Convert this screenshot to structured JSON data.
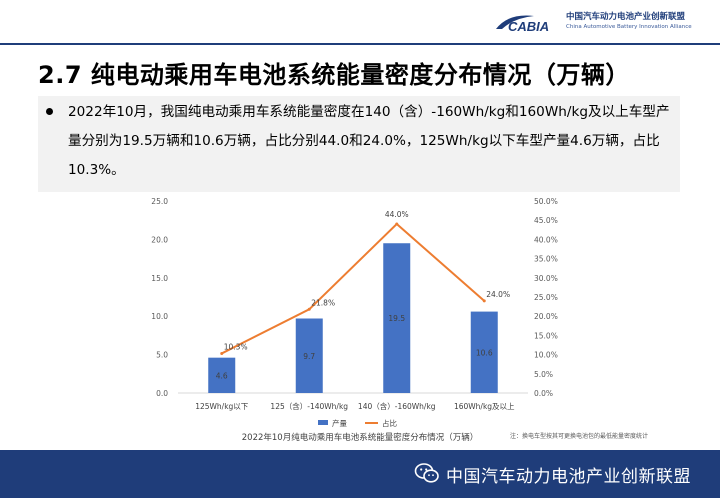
{
  "header": {
    "logo_text": "CABIA",
    "org_cn": "中国汽车动力电池产业创新联盟",
    "org_en": "China Automotive Battery Innovation Alliance"
  },
  "page_title": "2.7 纯电动乘用车电池系统能量密度分布情况（万辆）",
  "summary": "2022年10月，我国纯电动乘用车系统能量密度在140（含）-160Wh/kg和160Wh/kg及以上车型产量分别为19.5万辆和10.6万辆，占比分别44.0和24.0%，125Wh/kg以下车型产量4.6万辆，占比10.3%。",
  "chart_data": {
    "type": "bar",
    "title": "2022年10月纯电动乘用车电池系统能量密度分布情况（万辆）",
    "categories": [
      "125Wh/kg以下",
      "125（含）-140Wh/kg",
      "140（含）-160Wh/kg",
      "160Wh/kg及以上"
    ],
    "series": [
      {
        "name": "产量",
        "type": "bar",
        "axis": "left",
        "color": "#4472c4",
        "values": [
          4.6,
          9.7,
          19.5,
          10.6
        ],
        "labels": [
          "4.6",
          "9.7",
          "19.5",
          "10.6"
        ]
      },
      {
        "name": "占比",
        "type": "line",
        "axis": "right",
        "color": "#ed7d31",
        "values": [
          10.3,
          21.8,
          44.0,
          24.0
        ],
        "labels": [
          "10.3%",
          "21.8%",
          "44.0%",
          "24.0%"
        ]
      }
    ],
    "ylim_left": [
      0,
      25
    ],
    "yticks_left": [
      "0.0",
      "5.0",
      "10.0",
      "15.0",
      "20.0",
      "25.0"
    ],
    "ylim_right": [
      0,
      50
    ],
    "yticks_right": [
      "0.0%",
      "5.0%",
      "10.0%",
      "15.0%",
      "20.0%",
      "25.0%",
      "30.0%",
      "35.0%",
      "40.0%",
      "45.0%",
      "50.0%"
    ],
    "grid": false,
    "legend_placement": "bottom",
    "note": "注：换电车型按其可更换电池包的最低能量密度统计"
  },
  "footer": {
    "text": "中国汽车动力电池产业创新联盟",
    "icon": "wechat-icon"
  }
}
